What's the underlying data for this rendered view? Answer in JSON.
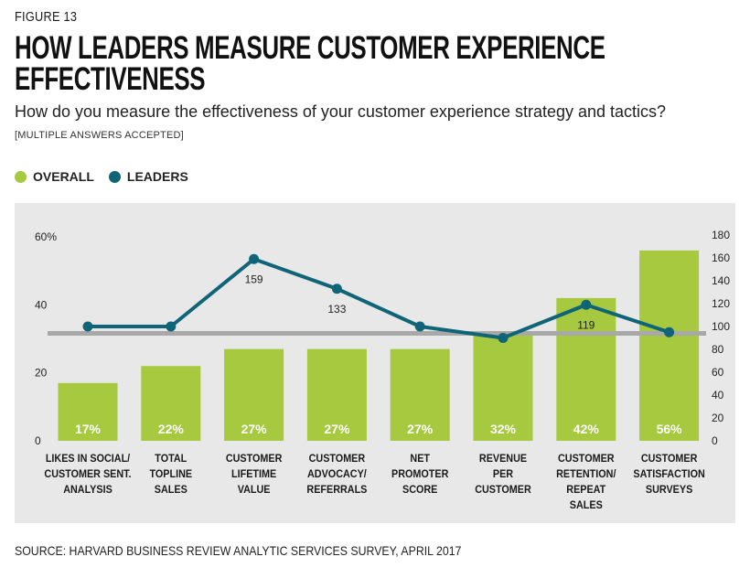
{
  "figure_label": "FIGURE 13",
  "chart_data": {
    "type": "bar",
    "title": "HOW LEADERS MEASURE CUSTOMER EXPERIENCE EFFECTIVENESS",
    "subtitle": "How do you measure the effectiveness of your customer experience strategy and tactics?",
    "note": "[MULTIPLE ANSWERS ACCEPTED]",
    "source": "SOURCE: HARVARD BUSINESS REVIEW ANALYTIC SERVICES SURVEY, APRIL 2017",
    "categories": [
      [
        "LIKES IN SOCIAL/",
        "CUSTOMER SENT.",
        "ANALYSIS"
      ],
      [
        "TOTAL",
        "TOPLINE",
        "SALES"
      ],
      [
        "CUSTOMER",
        "LIFETIME",
        "VALUE"
      ],
      [
        "CUSTOMER",
        "ADVOCACY/",
        "REFERRALS"
      ],
      [
        "NET",
        "PROMOTER",
        "SCORE"
      ],
      [
        "REVENUE",
        "PER",
        "CUSTOMER"
      ],
      [
        "CUSTOMER",
        "RETENTION/",
        "REPEAT",
        "SALES"
      ],
      [
        "CUSTOMER",
        "SATISFACTION",
        "SURVEYS"
      ]
    ],
    "series": [
      {
        "name": "OVERALL",
        "type": "bar",
        "axis": "left",
        "color": "#a6c93f",
        "values": [
          17,
          22,
          27,
          27,
          27,
          32,
          42,
          56
        ],
        "labels": [
          "17%",
          "22%",
          "27%",
          "27%",
          "27%",
          "32%",
          "42%",
          "56%"
        ]
      },
      {
        "name": "LEADERS",
        "type": "line",
        "axis": "right",
        "color": "#0f6577",
        "values": [
          100,
          100,
          159,
          133,
          100,
          90,
          119,
          95
        ],
        "labels": [
          "",
          "",
          "159",
          "133",
          "",
          "",
          "119",
          ""
        ]
      }
    ],
    "reference_line": {
      "axis": "right",
      "value": 94,
      "color": "#a8a8a8"
    },
    "left_axis": {
      "min": 0,
      "max": 60,
      "ticks": [
        "0",
        "20",
        "40",
        "60%"
      ]
    },
    "right_axis": {
      "min": 0,
      "max": 180,
      "ticks": [
        "0",
        "20",
        "40",
        "60",
        "80",
        "100",
        "120",
        "140",
        "160",
        "180"
      ]
    },
    "legend_position": "top-left"
  }
}
